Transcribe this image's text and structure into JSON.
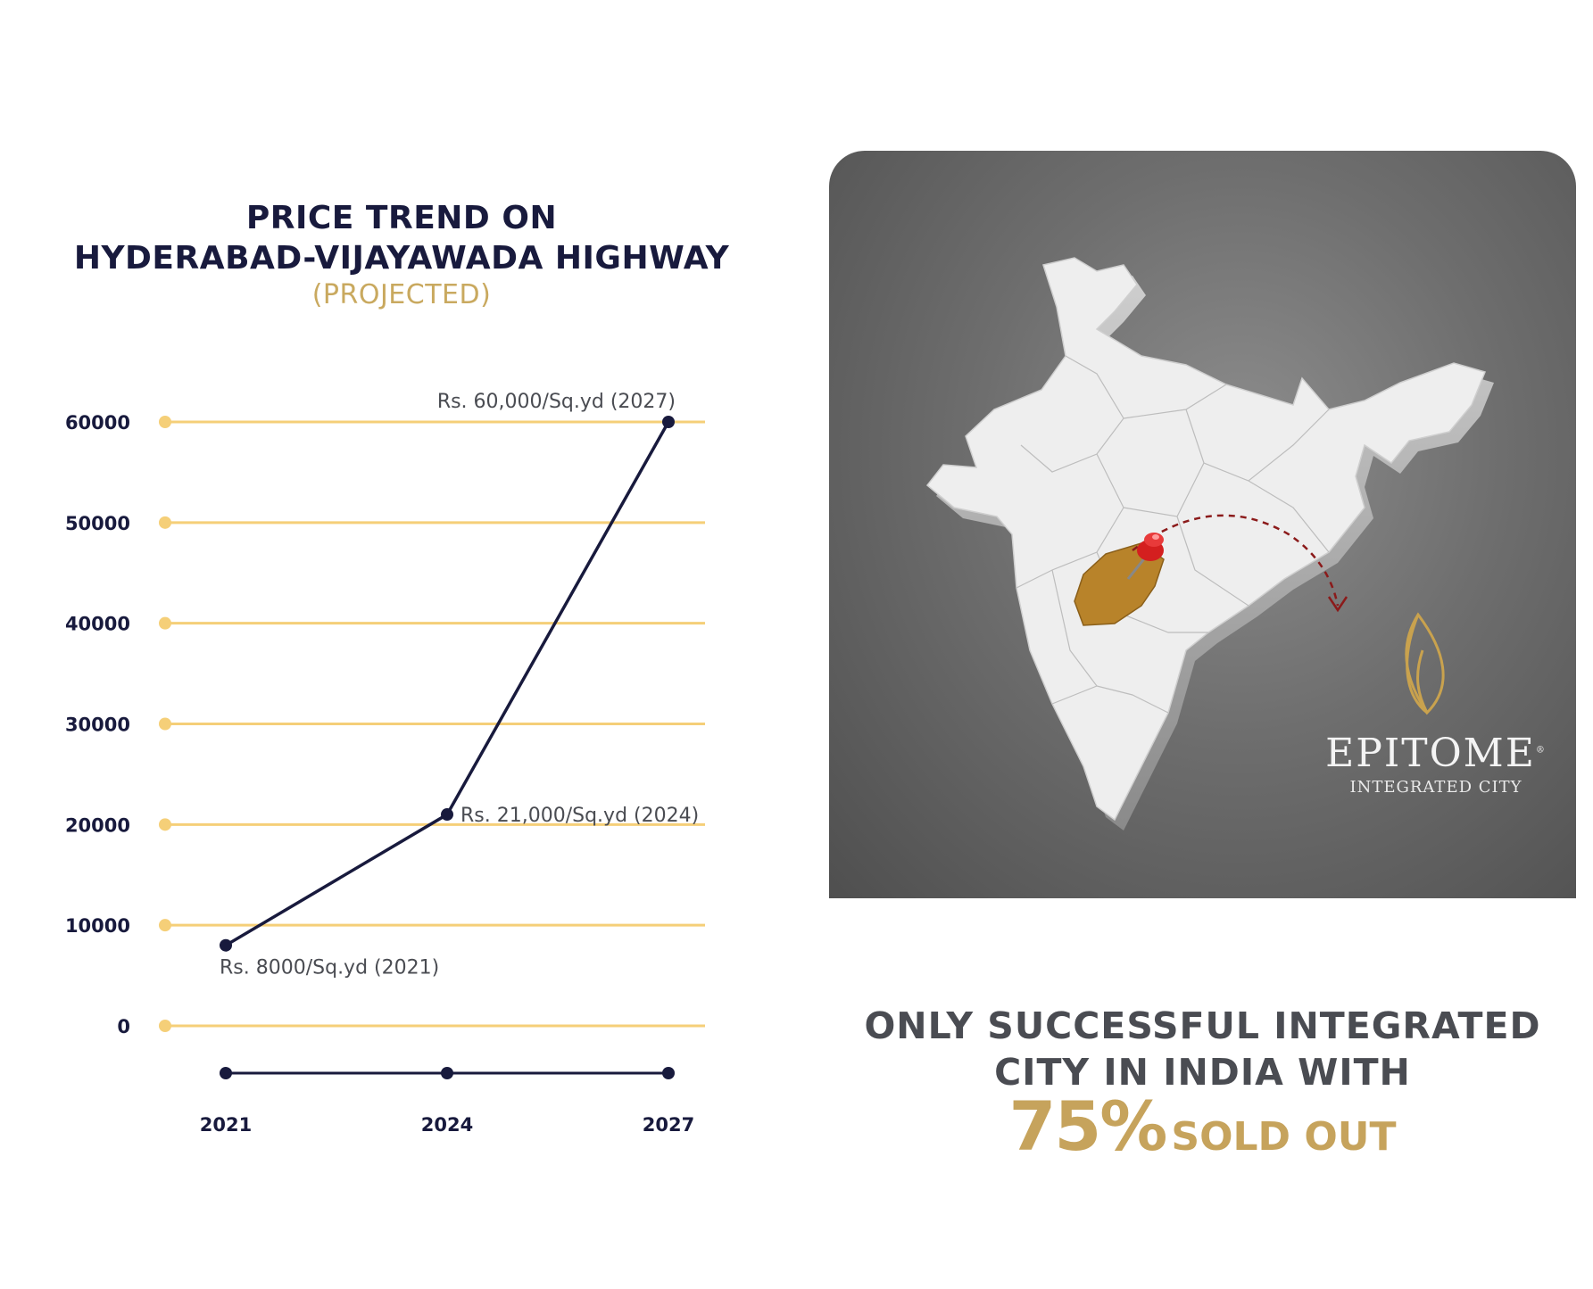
{
  "chart_data": {
    "type": "line",
    "title": "PRICE TREND ON",
    "title_line2": "HYDERABAD-VIJAYAWADA HIGHWAY",
    "subtitle": "(PROJECTED)",
    "x": [
      2021,
      2024,
      2027
    ],
    "x_tick_labels": [
      "2021",
      "2024",
      "2027"
    ],
    "y_ticks": [
      0,
      10000,
      20000,
      30000,
      40000,
      50000,
      60000
    ],
    "y_tick_labels": [
      "0",
      "10000",
      "20000",
      "30000",
      "40000",
      "50000",
      "60000"
    ],
    "ylim": [
      0,
      60000
    ],
    "series": [
      {
        "values": [
          8000,
          21000,
          60000
        ]
      }
    ],
    "data_labels": [
      "Rs. 8000/Sq.yd (2021)",
      "Rs. 21,000/Sq.yd (2024)",
      "Rs. 60,000/Sq.yd (2027)"
    ],
    "grid": true,
    "colors": {
      "line": "#181a3d",
      "grid": "#f5cf78",
      "tick_dot": "#f5cf78"
    }
  },
  "map_panel": {
    "brand_name": "EPITOME",
    "brand_mark": "®",
    "brand_sub": "INTEGRATED CITY",
    "icons": [
      "india-map-icon",
      "map-pin-icon",
      "leaf-logo-icon"
    ],
    "highlight_color": "#b8832a"
  },
  "tagline": {
    "line1": "ONLY SUCCESSFUL INTEGRATED",
    "line2": "CITY IN INDIA WITH",
    "percent": "75%",
    "suffix": "SOLD OUT"
  }
}
